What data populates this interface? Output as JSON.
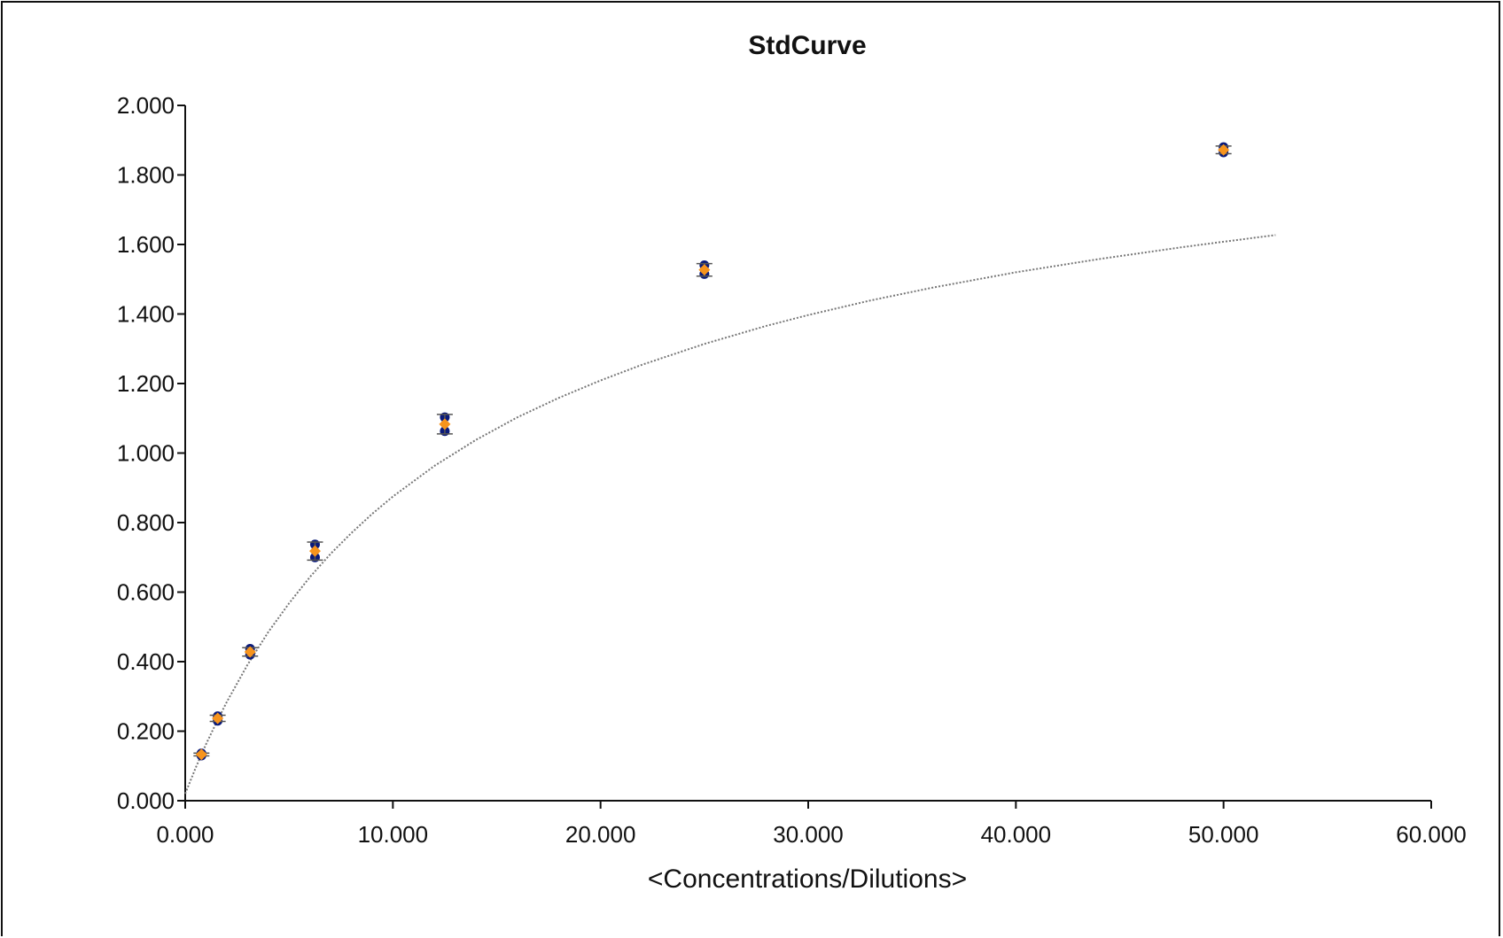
{
  "colors": {
    "replicate_points": "#0a1a7a",
    "mean_points": "#f7941d",
    "error_bars": "#555555",
    "fit_curve": "#777777",
    "axes": "#111111"
  },
  "chart_data": {
    "type": "scatter",
    "title": "StdCurve",
    "xlabel": "<Concentrations/Dilutions>",
    "ylabel": "",
    "xlim": [
      0,
      60
    ],
    "ylim": [
      0,
      2
    ],
    "x_ticks": [
      "0.000",
      "10.000",
      "20.000",
      "30.000",
      "40.000",
      "50.000",
      "60.000"
    ],
    "x_tick_values": [
      0,
      10,
      20,
      30,
      40,
      50,
      60
    ],
    "y_ticks": [
      "0.000",
      "0.200",
      "0.400",
      "0.600",
      "0.800",
      "1.000",
      "1.200",
      "1.400",
      "1.600",
      "1.800",
      "2.000"
    ],
    "y_tick_values": [
      0,
      0.2,
      0.4,
      0.6,
      0.8,
      1.0,
      1.2,
      1.4,
      1.6,
      1.8,
      2.0
    ],
    "grid": false,
    "legend": "none",
    "series": [
      {
        "marker": "circle",
        "role": "replicates",
        "points": [
          {
            "x": 0.781,
            "y": 0.13
          },
          {
            "x": 0.781,
            "y": 0.136
          },
          {
            "x": 1.563,
            "y": 0.23
          },
          {
            "x": 1.563,
            "y": 0.243
          },
          {
            "x": 3.125,
            "y": 0.42
          },
          {
            "x": 3.125,
            "y": 0.437
          },
          {
            "x": 6.25,
            "y": 0.7
          },
          {
            "x": 6.25,
            "y": 0.737
          },
          {
            "x": 12.5,
            "y": 1.063
          },
          {
            "x": 12.5,
            "y": 1.103
          },
          {
            "x": 25.0,
            "y": 1.515
          },
          {
            "x": 25.0,
            "y": 1.54
          },
          {
            "x": 50.0,
            "y": 1.865
          },
          {
            "x": 50.0,
            "y": 1.88
          }
        ]
      },
      {
        "marker": "diamond",
        "role": "mean",
        "error_bars": true,
        "points": [
          {
            "x": 0.781,
            "y": 0.133,
            "err": 0.004
          },
          {
            "x": 1.563,
            "y": 0.237,
            "err": 0.009
          },
          {
            "x": 3.125,
            "y": 0.428,
            "err": 0.012
          },
          {
            "x": 6.25,
            "y": 0.718,
            "err": 0.026
          },
          {
            "x": 12.5,
            "y": 1.083,
            "err": 0.028
          },
          {
            "x": 25.0,
            "y": 1.527,
            "err": 0.018
          },
          {
            "x": 50.0,
            "y": 1.872,
            "err": 0.011
          }
        ]
      }
    ],
    "fit_curve": {
      "style": "dotted",
      "x": [
        0,
        0.5,
        1,
        1.5,
        2,
        3,
        4,
        5,
        6,
        7,
        8,
        9,
        10,
        12,
        14,
        16,
        18,
        20,
        22,
        25,
        28,
        30,
        33,
        36,
        40,
        44,
        48,
        50,
        52.5
      ],
      "y": [
        0.02,
        0.094,
        0.162,
        0.225,
        0.284,
        0.391,
        0.485,
        0.568,
        0.643,
        0.71,
        0.77,
        0.825,
        0.875,
        0.963,
        1.038,
        1.103,
        1.159,
        1.209,
        1.254,
        1.314,
        1.366,
        1.397,
        1.439,
        1.476,
        1.52,
        1.558,
        1.592,
        1.608,
        1.627
      ]
    }
  }
}
